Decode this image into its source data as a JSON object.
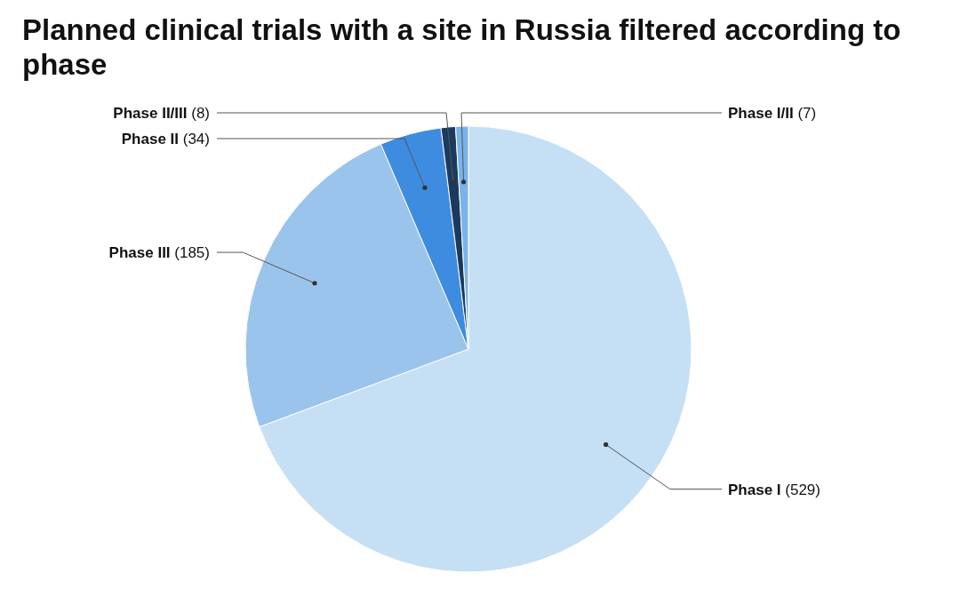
{
  "chart_data": {
    "type": "pie",
    "title": "Planned clinical trials with a site in Russia filtered according to phase",
    "categories": [
      "Phase I",
      "Phase III",
      "Phase II",
      "Phase II/III",
      "Phase I/II"
    ],
    "values": [
      529,
      185,
      34,
      8,
      7
    ],
    "value_labels": [
      "(529)",
      "(185)",
      "(34)",
      "(8)",
      "(7)"
    ],
    "colors": [
      "#c5dff4",
      "#9bc4ec",
      "#3d8ce0",
      "#1b3a5e",
      "#7ab3ec"
    ]
  }
}
